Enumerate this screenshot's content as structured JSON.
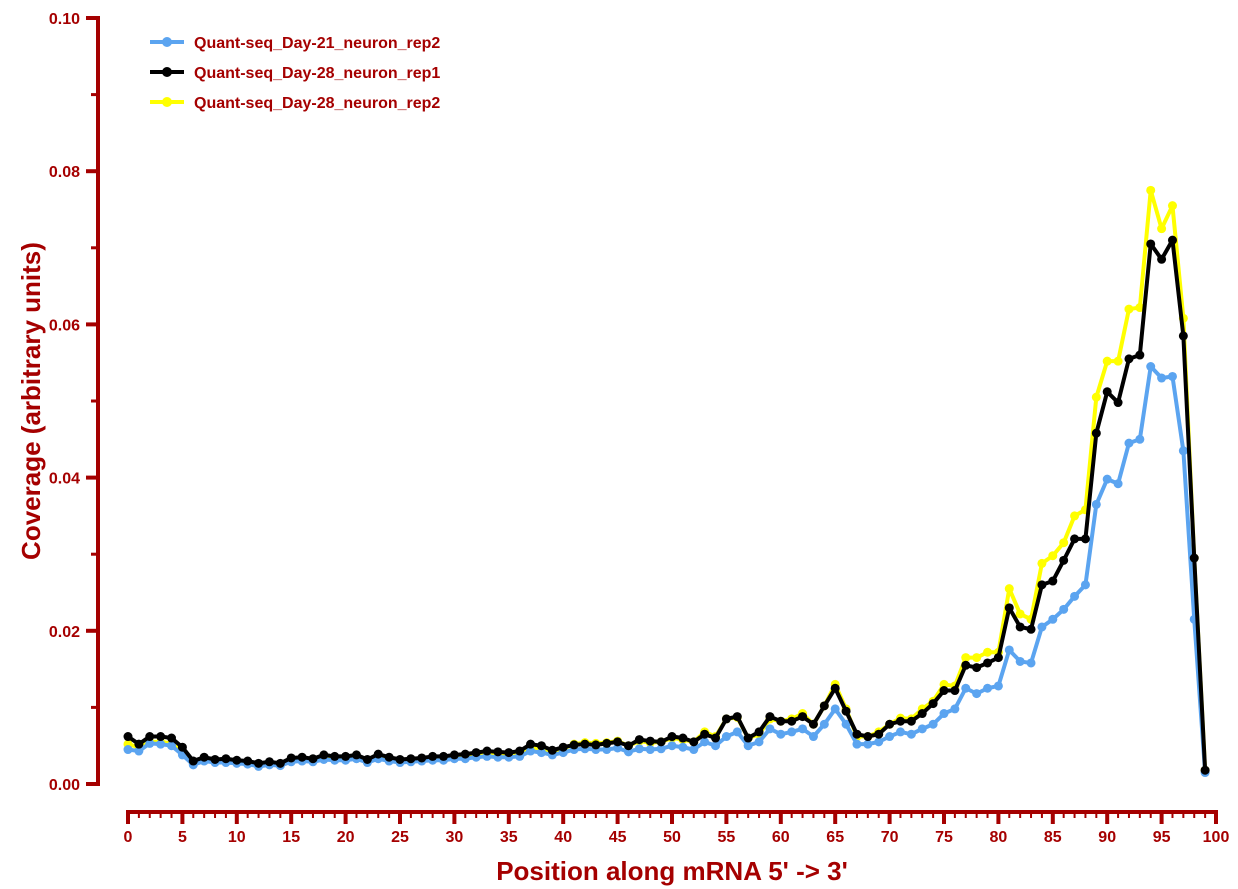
{
  "chart_data": {
    "type": "line",
    "title": "",
    "xlabel": "Position along mRNA 5' -> 3'",
    "ylabel": "Coverage (arbitrary units)",
    "xlim": [
      0,
      100
    ],
    "ylim": [
      0,
      0.1
    ],
    "x_ticks": [
      0,
      5,
      10,
      15,
      20,
      25,
      30,
      35,
      40,
      45,
      50,
      55,
      60,
      65,
      70,
      75,
      80,
      85,
      90,
      95,
      100
    ],
    "y_ticks": [
      "0.00",
      "0.02",
      "0.04",
      "0.06",
      "0.08",
      "0.10"
    ],
    "grid": false,
    "legend_position": "top-left",
    "axis_color": "#a50000",
    "x": [
      0,
      1,
      2,
      3,
      4,
      5,
      6,
      7,
      8,
      9,
      10,
      11,
      12,
      13,
      14,
      15,
      16,
      17,
      18,
      19,
      20,
      21,
      22,
      23,
      24,
      25,
      26,
      27,
      28,
      29,
      30,
      31,
      32,
      33,
      34,
      35,
      36,
      37,
      38,
      39,
      40,
      41,
      42,
      43,
      44,
      45,
      46,
      47,
      48,
      49,
      50,
      51,
      52,
      53,
      54,
      55,
      56,
      57,
      58,
      59,
      60,
      61,
      62,
      63,
      64,
      65,
      66,
      67,
      68,
      69,
      70,
      71,
      72,
      73,
      74,
      75,
      76,
      77,
      78,
      79,
      80,
      81,
      82,
      83,
      84,
      85,
      86,
      87,
      88,
      89,
      90,
      91,
      92,
      93,
      94,
      95,
      96,
      97,
      98,
      99
    ],
    "series": [
      {
        "name": "Quant-seq_Day-28_neuron_rep2",
        "color": "#ffff00",
        "values": [
          0.0052,
          0.0048,
          0.0055,
          0.0055,
          0.0053,
          0.0042,
          0.0028,
          0.0032,
          0.003,
          0.003,
          0.0029,
          0.0028,
          0.0025,
          0.0027,
          0.0026,
          0.0031,
          0.0032,
          0.0031,
          0.0035,
          0.0033,
          0.0033,
          0.0036,
          0.003,
          0.0036,
          0.0032,
          0.003,
          0.0031,
          0.0032,
          0.0034,
          0.0034,
          0.0036,
          0.0037,
          0.0039,
          0.004,
          0.0039,
          0.0039,
          0.004,
          0.0048,
          0.0046,
          0.0042,
          0.0046,
          0.0052,
          0.0054,
          0.0053,
          0.0054,
          0.0056,
          0.005,
          0.0056,
          0.0054,
          0.0055,
          0.006,
          0.0058,
          0.0055,
          0.0068,
          0.0062,
          0.0085,
          0.0087,
          0.006,
          0.0065,
          0.0085,
          0.0082,
          0.0085,
          0.0092,
          0.0078,
          0.0102,
          0.013,
          0.0098,
          0.0062,
          0.0062,
          0.0068,
          0.0078,
          0.0086,
          0.0085,
          0.0098,
          0.0108,
          0.013,
          0.0128,
          0.0165,
          0.0165,
          0.0172,
          0.0172,
          0.0255,
          0.0222,
          0.0215,
          0.0288,
          0.0298,
          0.0315,
          0.035,
          0.0358,
          0.0505,
          0.0552,
          0.0552,
          0.062,
          0.0622,
          0.0775,
          0.0725,
          0.0755,
          0.0608,
          0.0295,
          0.0018
        ]
      },
      {
        "name": "Quant-seq_Day-21_neuron_rep2",
        "color": "#5ba4f0",
        "values": [
          0.0045,
          0.0043,
          0.0053,
          0.0052,
          0.005,
          0.0038,
          0.0025,
          0.003,
          0.0028,
          0.0028,
          0.0027,
          0.0026,
          0.0023,
          0.0025,
          0.0024,
          0.0029,
          0.003,
          0.0029,
          0.0032,
          0.0031,
          0.0031,
          0.0033,
          0.0028,
          0.0033,
          0.003,
          0.0028,
          0.0029,
          0.003,
          0.0031,
          0.0031,
          0.0033,
          0.0033,
          0.0035,
          0.0036,
          0.0035,
          0.0035,
          0.0036,
          0.0043,
          0.0041,
          0.0038,
          0.0041,
          0.0045,
          0.0046,
          0.0045,
          0.0045,
          0.0047,
          0.0042,
          0.0046,
          0.0045,
          0.0046,
          0.005,
          0.0048,
          0.0045,
          0.0055,
          0.005,
          0.0062,
          0.0068,
          0.005,
          0.0055,
          0.0072,
          0.0065,
          0.0068,
          0.0072,
          0.0062,
          0.0078,
          0.0098,
          0.0078,
          0.0052,
          0.0052,
          0.0055,
          0.0062,
          0.0068,
          0.0065,
          0.0072,
          0.0078,
          0.0092,
          0.0098,
          0.0125,
          0.0118,
          0.0125,
          0.0128,
          0.0175,
          0.016,
          0.0158,
          0.0205,
          0.0215,
          0.0228,
          0.0245,
          0.026,
          0.0365,
          0.0398,
          0.0392,
          0.0445,
          0.045,
          0.0545,
          0.053,
          0.0532,
          0.0435,
          0.0215,
          0.0015
        ]
      },
      {
        "name": "Quant-seq_Day-28_neuron_rep1",
        "color": "#000000",
        "values": [
          0.0062,
          0.0052,
          0.0062,
          0.0062,
          0.006,
          0.0048,
          0.003,
          0.0035,
          0.0032,
          0.0033,
          0.0031,
          0.003,
          0.0027,
          0.0029,
          0.0027,
          0.0034,
          0.0035,
          0.0033,
          0.0038,
          0.0036,
          0.0036,
          0.0038,
          0.0032,
          0.0039,
          0.0035,
          0.0032,
          0.0033,
          0.0034,
          0.0036,
          0.0036,
          0.0038,
          0.0039,
          0.0041,
          0.0043,
          0.0042,
          0.0041,
          0.0043,
          0.0052,
          0.005,
          0.0044,
          0.0048,
          0.0051,
          0.0052,
          0.0051,
          0.0053,
          0.0055,
          0.005,
          0.0058,
          0.0056,
          0.0055,
          0.0062,
          0.006,
          0.0055,
          0.0065,
          0.006,
          0.0085,
          0.0088,
          0.006,
          0.0068,
          0.0088,
          0.0082,
          0.0082,
          0.0088,
          0.0078,
          0.0102,
          0.0125,
          0.0095,
          0.0065,
          0.0062,
          0.0065,
          0.0078,
          0.0082,
          0.0082,
          0.0092,
          0.0105,
          0.0122,
          0.0122,
          0.0155,
          0.0152,
          0.0158,
          0.0165,
          0.023,
          0.0205,
          0.0202,
          0.026,
          0.0265,
          0.0292,
          0.032,
          0.032,
          0.0458,
          0.0512,
          0.0498,
          0.0555,
          0.056,
          0.0705,
          0.0685,
          0.071,
          0.0585,
          0.0295,
          0.0018
        ]
      }
    ],
    "legend_order": [
      "Quant-seq_Day-21_neuron_rep2",
      "Quant-seq_Day-28_neuron_rep1",
      "Quant-seq_Day-28_neuron_rep2"
    ]
  }
}
